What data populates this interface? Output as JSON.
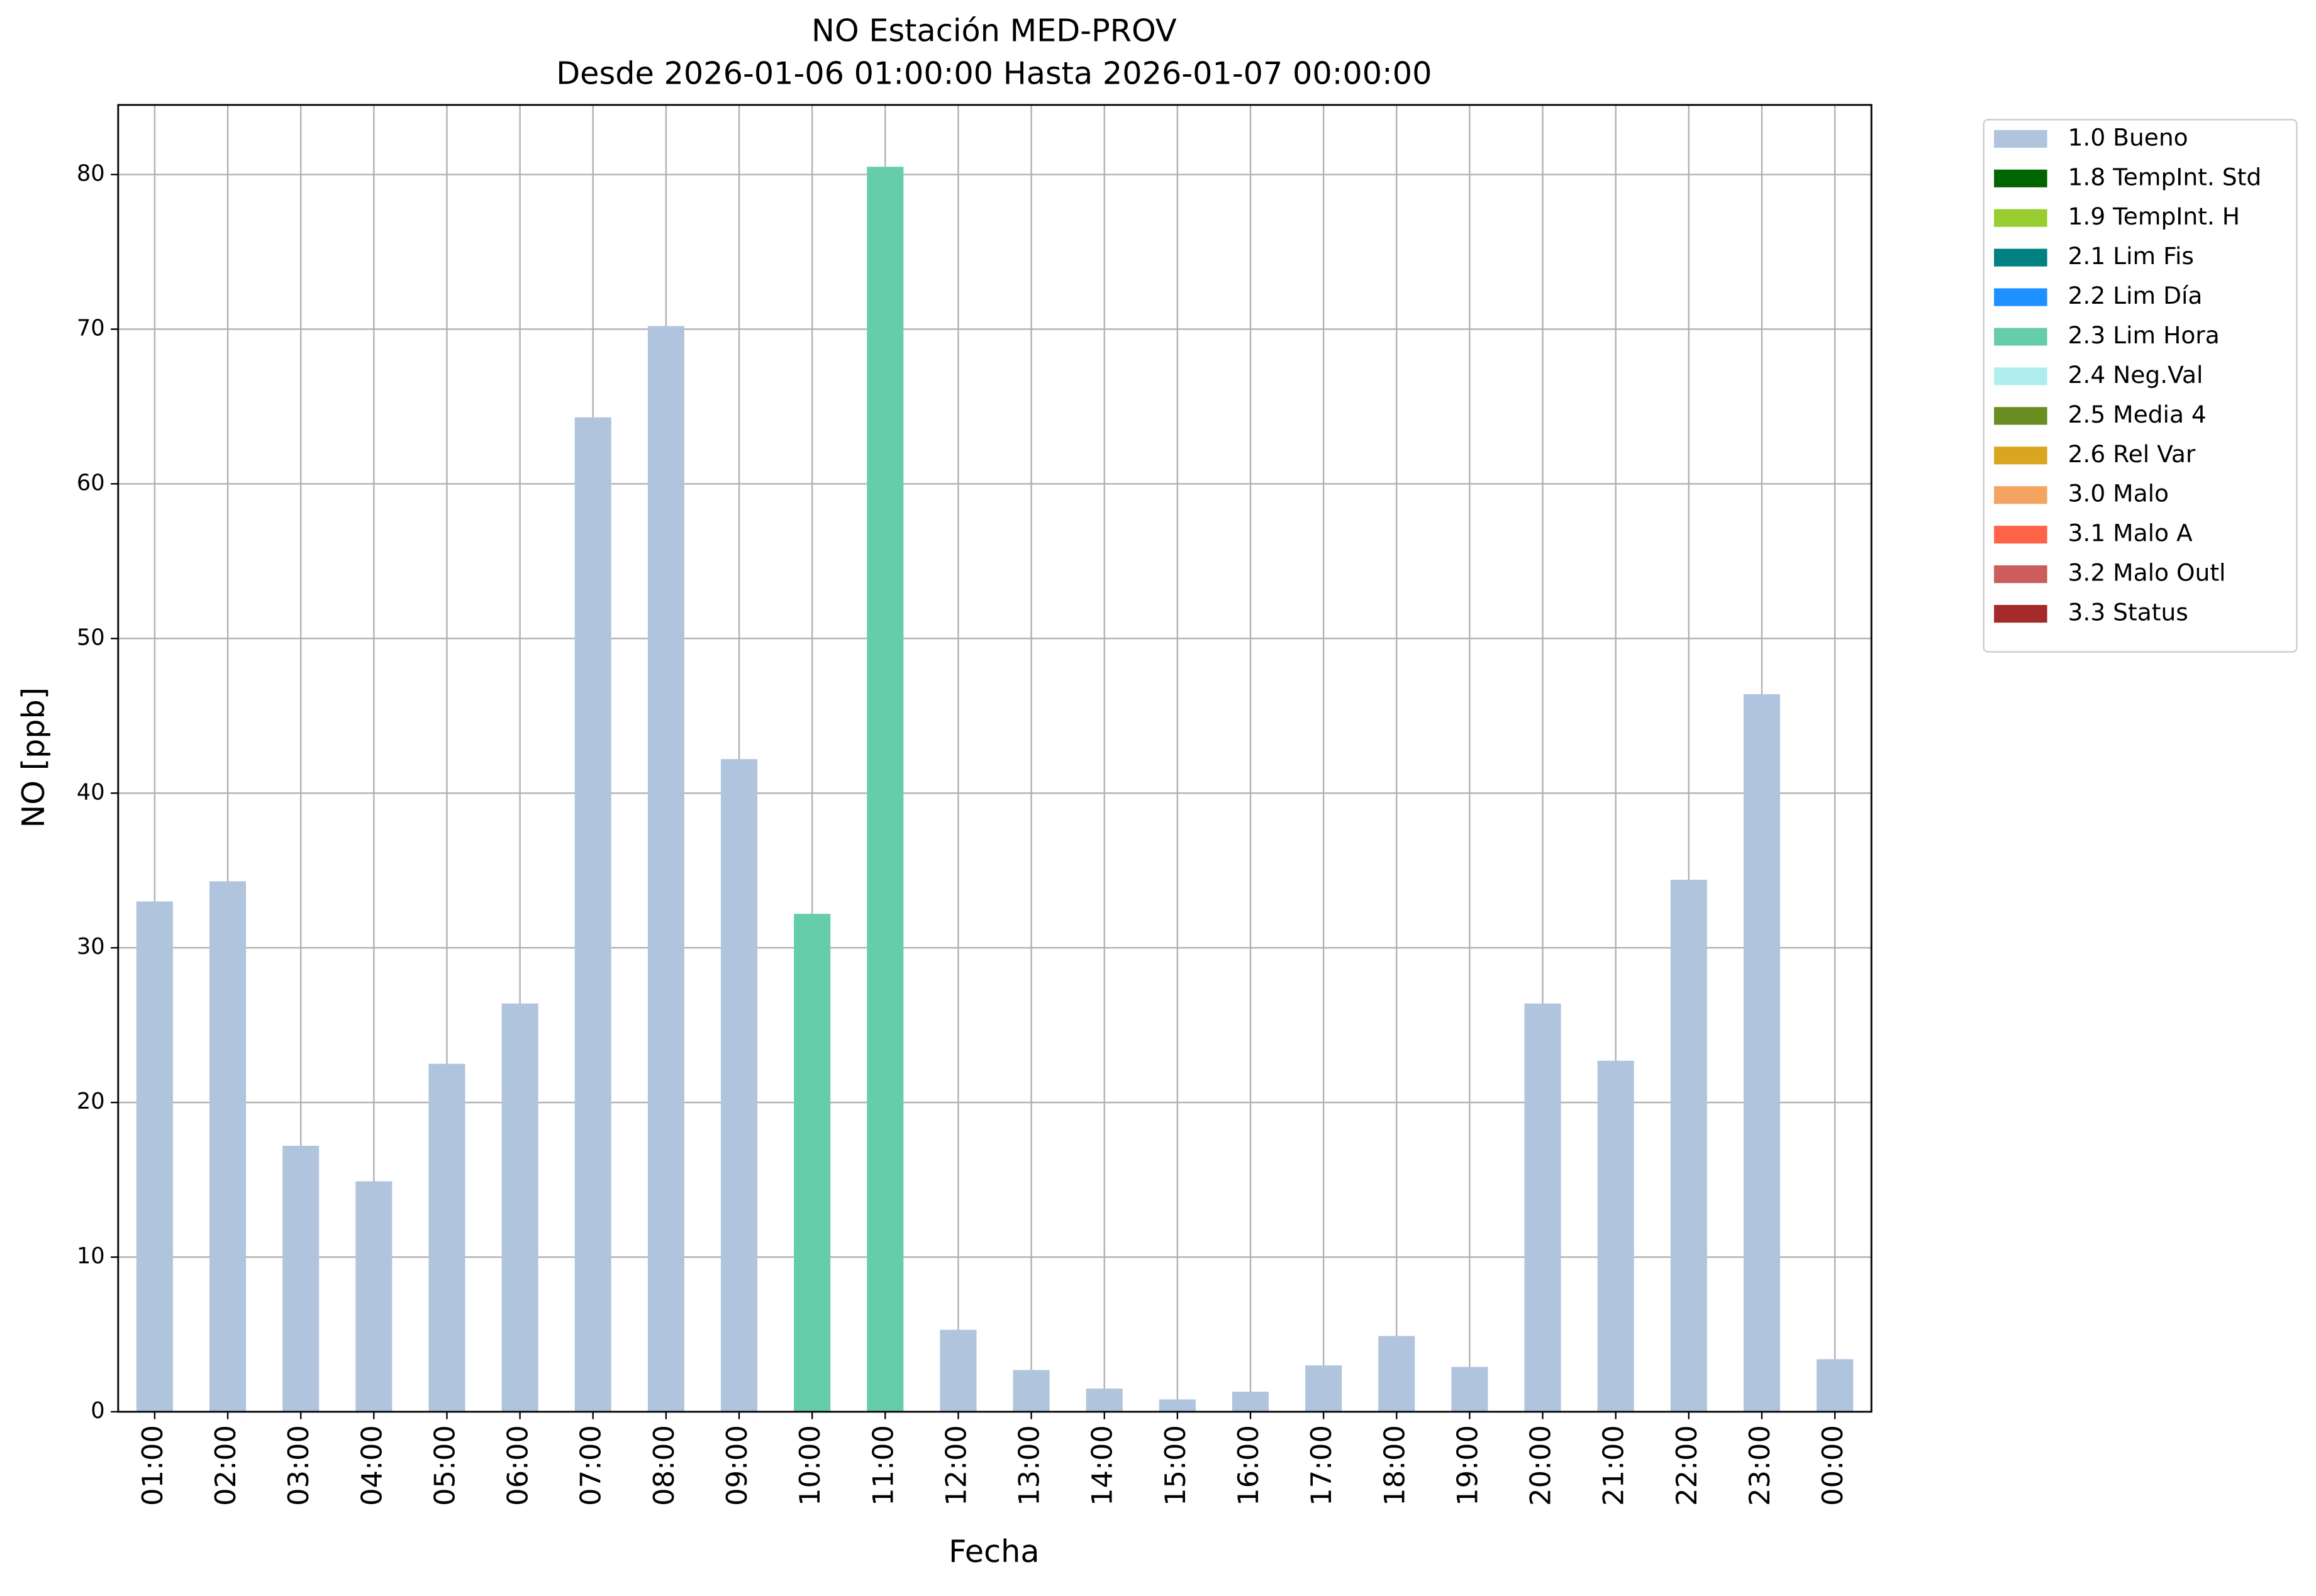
{
  "chart_data": {
    "type": "bar",
    "stacked": true,
    "title": "NO Estación MED-PROV",
    "subtitle": "Desde 2026-01-06 01:00:00 Hasta 2026-01-07 00:00:00",
    "x_label": "Fecha",
    "y_label": "NO [ppb]",
    "categories": [
      "01:00",
      "02:00",
      "03:00",
      "04:00",
      "05:00",
      "06:00",
      "07:00",
      "08:00",
      "09:00",
      "10:00",
      "11:00",
      "12:00",
      "13:00",
      "14:00",
      "15:00",
      "16:00",
      "17:00",
      "18:00",
      "19:00",
      "20:00",
      "21:00",
      "22:00",
      "23:00",
      "00:00"
    ],
    "series": [
      {
        "name": "1.0 Bueno",
        "color": "#b0c4de",
        "values": [
          33.0,
          34.3,
          17.2,
          14.9,
          22.5,
          26.4,
          64.3,
          70.2,
          42.2,
          null,
          null,
          5.3,
          2.7,
          1.5,
          0.8,
          1.3,
          3.0,
          4.9,
          2.9,
          26.4,
          22.7,
          34.4,
          46.4,
          3.4
        ]
      },
      {
        "name": "1.8 TempInt. Std",
        "color": "#006400",
        "values": [
          null,
          null,
          null,
          null,
          null,
          null,
          null,
          null,
          null,
          null,
          null,
          null,
          null,
          null,
          null,
          null,
          null,
          null,
          null,
          null,
          null,
          null,
          null,
          null
        ]
      },
      {
        "name": "1.9 TempInt. H",
        "color": "#9acd32",
        "values": [
          null,
          null,
          null,
          null,
          null,
          null,
          null,
          null,
          null,
          null,
          null,
          null,
          null,
          null,
          null,
          null,
          null,
          null,
          null,
          null,
          null,
          null,
          null,
          null
        ]
      },
      {
        "name": "2.1 Lim Fis",
        "color": "#008080",
        "values": [
          null,
          null,
          null,
          null,
          null,
          null,
          null,
          null,
          null,
          null,
          null,
          null,
          null,
          null,
          null,
          null,
          null,
          null,
          null,
          null,
          null,
          null,
          null,
          null
        ]
      },
      {
        "name": "2.2 Lim Día",
        "color": "#1e90ff",
        "values": [
          null,
          null,
          null,
          null,
          null,
          null,
          null,
          null,
          null,
          null,
          null,
          null,
          null,
          null,
          null,
          null,
          null,
          null,
          null,
          null,
          null,
          null,
          null,
          null
        ]
      },
      {
        "name": "2.3 Lim Hora",
        "color": "#66cdaa",
        "values": [
          null,
          null,
          null,
          null,
          null,
          null,
          null,
          null,
          null,
          32.2,
          80.5,
          null,
          null,
          null,
          null,
          null,
          null,
          null,
          null,
          null,
          null,
          null,
          null,
          null
        ]
      },
      {
        "name": "2.4 Neg.Val",
        "color": "#afeeee",
        "values": [
          null,
          null,
          null,
          null,
          null,
          null,
          null,
          null,
          null,
          null,
          null,
          null,
          null,
          null,
          null,
          null,
          null,
          null,
          null,
          null,
          null,
          null,
          null,
          null
        ]
      },
      {
        "name": "2.5 Media 4",
        "color": "#6b8e23",
        "values": [
          null,
          null,
          null,
          null,
          null,
          null,
          null,
          null,
          null,
          null,
          null,
          null,
          null,
          null,
          null,
          null,
          null,
          null,
          null,
          null,
          null,
          null,
          null,
          null
        ]
      },
      {
        "name": "2.6 Rel Var",
        "color": "#daa520",
        "values": [
          null,
          null,
          null,
          null,
          null,
          null,
          null,
          null,
          null,
          null,
          null,
          null,
          null,
          null,
          null,
          null,
          null,
          null,
          null,
          null,
          null,
          null,
          null,
          null
        ]
      },
      {
        "name": "3.0 Malo",
        "color": "#f4a460",
        "values": [
          null,
          null,
          null,
          null,
          null,
          null,
          null,
          null,
          null,
          null,
          null,
          null,
          null,
          null,
          null,
          null,
          null,
          null,
          null,
          null,
          null,
          null,
          null,
          null
        ]
      },
      {
        "name": "3.1 Malo A",
        "color": "#ff6347",
        "values": [
          null,
          null,
          null,
          null,
          null,
          null,
          null,
          null,
          null,
          null,
          null,
          null,
          null,
          null,
          null,
          null,
          null,
          null,
          null,
          null,
          null,
          null,
          null,
          null
        ]
      },
      {
        "name": "3.2 Malo Outl",
        "color": "#cd5c5c",
        "values": [
          null,
          null,
          null,
          null,
          null,
          null,
          null,
          null,
          null,
          null,
          null,
          null,
          null,
          null,
          null,
          null,
          null,
          null,
          null,
          null,
          null,
          null,
          null,
          null
        ]
      },
      {
        "name": "3.3 Status",
        "color": "#a52a2a",
        "values": [
          null,
          null,
          null,
          null,
          null,
          null,
          null,
          null,
          null,
          null,
          null,
          null,
          null,
          null,
          null,
          null,
          null,
          null,
          null,
          null,
          null,
          null,
          null,
          null
        ]
      }
    ],
    "ylim": [
      0,
      84.5
    ],
    "yticks": [
      0,
      10,
      20,
      30,
      40,
      50,
      60,
      70,
      80
    ],
    "grid": true,
    "legend": "outside-right"
  }
}
